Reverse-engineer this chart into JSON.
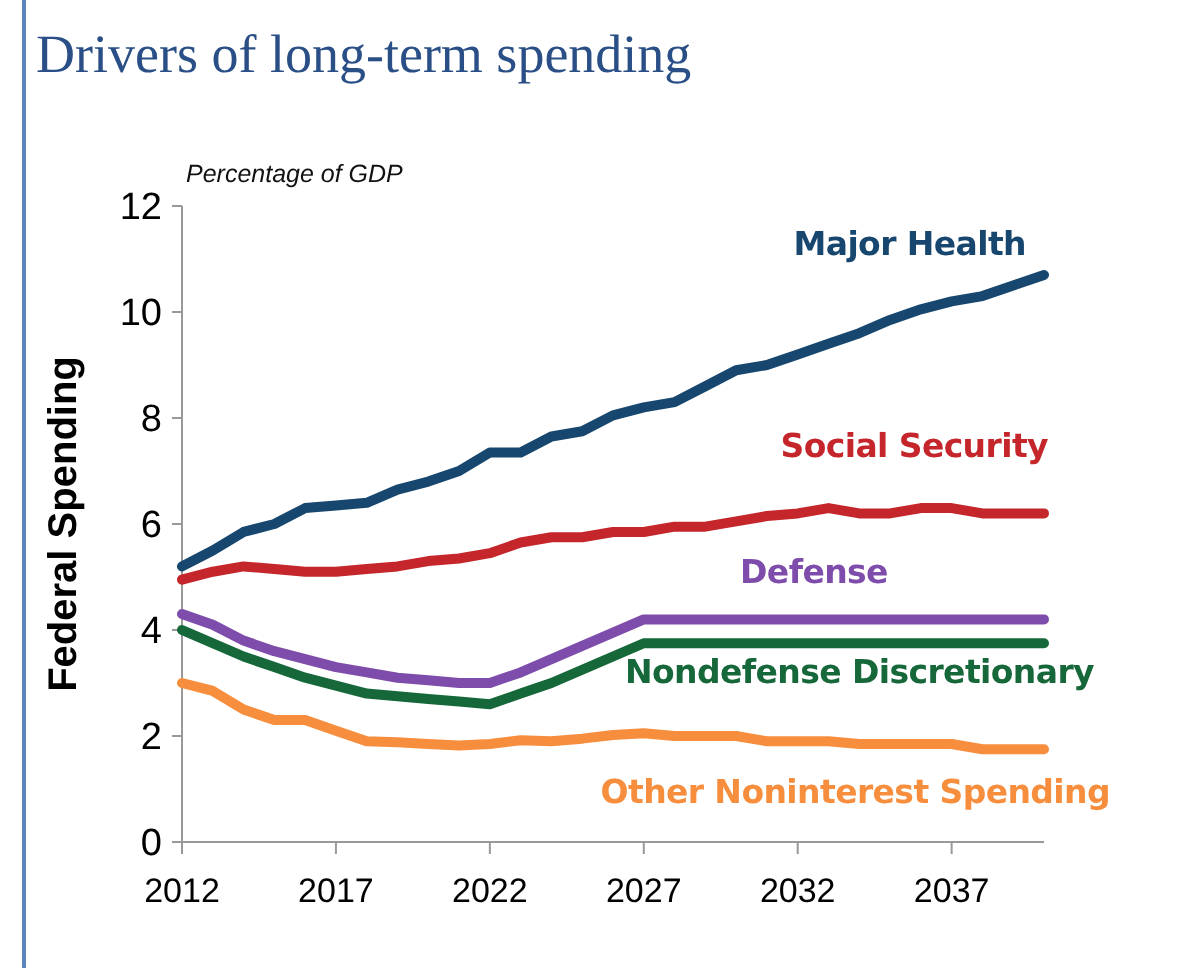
{
  "chart_data": {
    "type": "line",
    "title": "Drivers of long-term spending",
    "subtitle": "Percentage of GDP",
    "ylabel": "Federal Spending",
    "x": [
      2012,
      2013,
      2014,
      2015,
      2016,
      2017,
      2018,
      2019,
      2020,
      2021,
      2022,
      2023,
      2024,
      2025,
      2026,
      2027,
      2028,
      2029,
      2030,
      2031,
      2032,
      2033,
      2034,
      2035,
      2036,
      2037,
      2038,
      2039,
      2040
    ],
    "xlim": [
      2012,
      2040
    ],
    "xticks": [
      2012,
      2017,
      2022,
      2027,
      2032,
      2037
    ],
    "ylim": [
      0,
      12
    ],
    "yticks": [
      0,
      2,
      4,
      6,
      8,
      10,
      12
    ],
    "grid": false,
    "legend": false,
    "marker": "none",
    "line_style": "solid",
    "series": [
      {
        "name": "Major Health",
        "color": "#17476f",
        "values": [
          5.2,
          5.5,
          5.85,
          6.0,
          6.3,
          6.35,
          6.4,
          6.65,
          6.8,
          7.0,
          7.35,
          7.35,
          7.65,
          7.75,
          8.05,
          8.2,
          8.3,
          8.6,
          8.9,
          9.0,
          9.2,
          9.4,
          9.6,
          9.85,
          10.05,
          10.2,
          10.3,
          10.5,
          10.7
        ]
      },
      {
        "name": "Social Security",
        "color": "#c4262b",
        "values": [
          4.95,
          5.1,
          5.2,
          5.15,
          5.1,
          5.1,
          5.15,
          5.2,
          5.3,
          5.35,
          5.45,
          5.65,
          5.75,
          5.75,
          5.85,
          5.85,
          5.95,
          5.95,
          6.05,
          6.15,
          6.2,
          6.3,
          6.2,
          6.2,
          6.3,
          6.3,
          6.2,
          6.2,
          6.2
        ]
      },
      {
        "name": "Defense",
        "color": "#7e4dab",
        "values": [
          4.3,
          4.1,
          3.8,
          3.6,
          3.45,
          3.3,
          3.2,
          3.1,
          3.05,
          3.0,
          3.0,
          3.2,
          3.45,
          3.7,
          3.95,
          4.2,
          4.2,
          4.2,
          4.2,
          4.2,
          4.2,
          4.2,
          4.2,
          4.2,
          4.2,
          4.2,
          4.2,
          4.2,
          4.2
        ]
      },
      {
        "name": "Nondefense Discretionary",
        "color": "#16683a",
        "values": [
          4.0,
          3.75,
          3.5,
          3.3,
          3.1,
          2.95,
          2.8,
          2.75,
          2.7,
          2.65,
          2.6,
          2.8,
          3.0,
          3.25,
          3.5,
          3.75,
          3.75,
          3.75,
          3.75,
          3.75,
          3.75,
          3.75,
          3.75,
          3.75,
          3.75,
          3.75,
          3.75,
          3.75,
          3.75
        ]
      },
      {
        "name": "Other Noninterest Spending",
        "color": "#f78e3d",
        "values": [
          3.0,
          2.85,
          2.5,
          2.3,
          2.3,
          2.1,
          1.9,
          1.88,
          1.85,
          1.82,
          1.85,
          1.92,
          1.9,
          1.95,
          2.02,
          2.05,
          2.0,
          2.0,
          2.0,
          1.9,
          1.9,
          1.9,
          1.85,
          1.85,
          1.85,
          1.85,
          1.75,
          1.75,
          1.75
        ]
      }
    ]
  }
}
